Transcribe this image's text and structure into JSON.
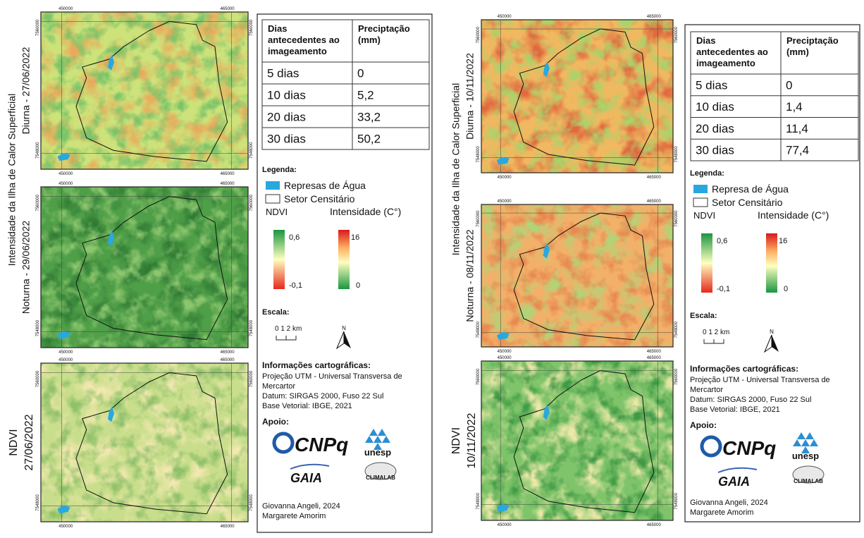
{
  "panels": [
    {
      "side_title": "Intensidade da Ilha de Calor Superficial",
      "map_labels": [
        [
          "Diurna - 27/06/2022"
        ],
        [
          "Noturna - 29/06/2022"
        ],
        [
          "NDVI",
          "27/06/2022"
        ]
      ],
      "coords": {
        "x_left": "450000",
        "x_right": "465000",
        "y_top": "7560000",
        "y_bottom": "7548000"
      },
      "table": {
        "header": [
          [
            "Dias",
            "antecedentes ao",
            "imageamento"
          ],
          [
            "Preciptação",
            "(mm)"
          ]
        ],
        "rows": [
          [
            "5 dias",
            "0"
          ],
          [
            "10 dias",
            "5,2"
          ],
          [
            "20 dias",
            "33,2"
          ],
          [
            "30 dias",
            "50,2"
          ]
        ]
      },
      "legend": {
        "title": "Legenda:",
        "water": "Represas de Água",
        "sector": "Setor Censitário",
        "ndvi": "NDVI",
        "ndvi_max": "0,6",
        "ndvi_min": "-0,1",
        "intensity": "Intensidade (C°)",
        "int_max": "16",
        "int_min": "0",
        "scale_title": "Escala:",
        "scale": "0  1  2 km",
        "north": "N",
        "carto_title": "Informações cartográficas:",
        "carto": [
          "Projeção UTM - Universal Transversa de",
          "Mercartor",
          "Datum: SIRGAS 2000, Fuso 22 Sul",
          "Base Vetorial: IBGE, 2021"
        ],
        "support_title": "Apoio:",
        "logos": [
          "CNPq",
          "unesp",
          "GAIA",
          "CLIMALAB"
        ],
        "credits": [
          "Giovanna Angeli, 2024",
          "Margarete Amorim"
        ]
      }
    },
    {
      "side_title": "Intensidade da Ilha de Calor Superficial",
      "map_labels": [
        [
          "Diurna - 10/11/2022"
        ],
        [
          "Noturna - 08/11/2022"
        ],
        [
          "NDVI",
          "10/11/2022"
        ]
      ],
      "coords": {
        "x_left": "450000",
        "x_right": "465000",
        "y_top": "7560000",
        "y_bottom": "7548000"
      },
      "table": {
        "header": [
          [
            "Dias",
            "antecedentes ao",
            "imageamento"
          ],
          [
            "Preciptação",
            "(mm)"
          ]
        ],
        "rows": [
          [
            "5 dias",
            "0"
          ],
          [
            "10 dias",
            "1,4"
          ],
          [
            "20 dias",
            "11,4"
          ],
          [
            "30 dias",
            "77,4"
          ]
        ]
      },
      "legend": {
        "title": "Legenda:",
        "water": "Represa de Água",
        "sector": "Setor Censitário",
        "ndvi": "NDVI",
        "ndvi_max": "0,6",
        "ndvi_min": "-0,1",
        "intensity": "Intensidade (C°)",
        "int_max": "16",
        "int_min": "0",
        "scale_title": "Escala:",
        "scale": "0  1  2 km",
        "north": "N",
        "carto_title": "Informações cartográficas:",
        "carto": [
          "Projeção UTM - Universal Transversa de",
          "Mercartor",
          "Datum: SIRGAS 2000, Fuso 22 Sul",
          "Base Vetorial: IBGE, 2021"
        ],
        "support_title": "Apoio:",
        "logos": [
          "CNPq",
          "unesp",
          "GAIA",
          "CLIMALAB"
        ],
        "credits": [
          "Giovanna Angeli, 2024",
          "Margarete Amorim"
        ]
      }
    }
  ]
}
